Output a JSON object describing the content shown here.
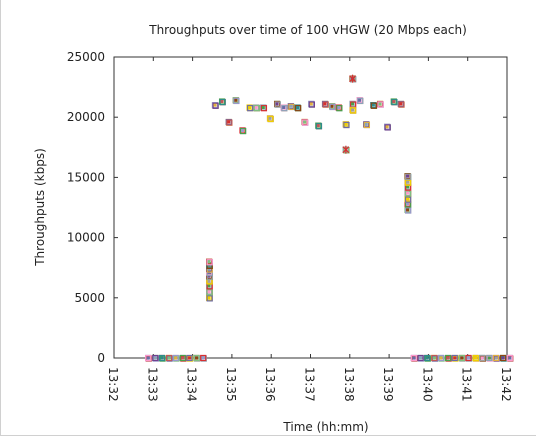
{
  "chart_data": {
    "type": "scatter",
    "title": "Throughputs over time of 100 vHGW (20 Mbps each)",
    "xlabel": "Time (hh:mm)",
    "ylabel": "Throughputs (kbps)",
    "xlim": [
      "13:32",
      "13:42"
    ],
    "ylim": [
      0,
      25000
    ],
    "x_ticks": [
      "13:32",
      "13:33",
      "13:34",
      "13:35",
      "13:36",
      "13:37",
      "13:38",
      "13:39",
      "13:40",
      "13:41",
      "13:42"
    ],
    "y_ticks": [
      0,
      5000,
      10000,
      15000,
      20000,
      25000
    ],
    "grid": false,
    "marker_colors": [
      "#6a6aa8",
      "#8aa4b8",
      "#2c8c8c",
      "#7fbf7f",
      "#e0b040",
      "#c05858",
      "#d63030",
      "#8b4513",
      "#9999cc",
      "#f0d000",
      "#ff99cc",
      "#4aa04a",
      "#a0a0a0",
      "#6f3f8f"
    ],
    "note_points": "x in minutes after 13:32, y in kbps; representative aggregate of overlapping markers for 100 vHGW series",
    "points": [
      {
        "x": 0.87,
        "y": 0
      },
      {
        "x": 1.05,
        "y": 0
      },
      {
        "x": 1.22,
        "y": 0
      },
      {
        "x": 1.4,
        "y": 0
      },
      {
        "x": 1.57,
        "y": 0
      },
      {
        "x": 1.75,
        "y": 0
      },
      {
        "x": 1.92,
        "y": 0
      },
      {
        "x": 2.1,
        "y": 0
      },
      {
        "x": 2.27,
        "y": 0
      },
      {
        "x": 2.42,
        "y": 5000
      },
      {
        "x": 2.42,
        "y": 5500
      },
      {
        "x": 2.42,
        "y": 6000
      },
      {
        "x": 2.42,
        "y": 6400
      },
      {
        "x": 2.42,
        "y": 6800
      },
      {
        "x": 2.42,
        "y": 7100
      },
      {
        "x": 2.42,
        "y": 7400
      },
      {
        "x": 2.42,
        "y": 7700
      },
      {
        "x": 2.42,
        "y": 8000
      },
      {
        "x": 2.57,
        "y": 21000
      },
      {
        "x": 2.75,
        "y": 21300
      },
      {
        "x": 2.92,
        "y": 19600
      },
      {
        "x": 3.1,
        "y": 21400
      },
      {
        "x": 3.27,
        "y": 18900
      },
      {
        "x": 3.45,
        "y": 20800
      },
      {
        "x": 3.62,
        "y": 20800
      },
      {
        "x": 3.8,
        "y": 20800
      },
      {
        "x": 3.97,
        "y": 19900
      },
      {
        "x": 4.15,
        "y": 21100
      },
      {
        "x": 4.32,
        "y": 20800
      },
      {
        "x": 4.5,
        "y": 20900
      },
      {
        "x": 4.67,
        "y": 20800
      },
      {
        "x": 4.85,
        "y": 19600
      },
      {
        "x": 5.02,
        "y": 21100
      },
      {
        "x": 5.2,
        "y": 19300
      },
      {
        "x": 5.37,
        "y": 21100
      },
      {
        "x": 5.55,
        "y": 20900
      },
      {
        "x": 5.72,
        "y": 20800
      },
      {
        "x": 5.9,
        "y": 19400
      },
      {
        "x": 5.9,
        "y": 17300
      },
      {
        "x": 6.07,
        "y": 21100
      },
      {
        "x": 6.07,
        "y": 20600
      },
      {
        "x": 6.07,
        "y": 23200
      },
      {
        "x": 6.25,
        "y": 21400
      },
      {
        "x": 6.42,
        "y": 19400
      },
      {
        "x": 6.6,
        "y": 21000
      },
      {
        "x": 6.77,
        "y": 21100
      },
      {
        "x": 6.95,
        "y": 19200
      },
      {
        "x": 7.12,
        "y": 21300
      },
      {
        "x": 7.3,
        "y": 21100
      },
      {
        "x": 7.47,
        "y": 12300
      },
      {
        "x": 7.47,
        "y": 12800
      },
      {
        "x": 7.47,
        "y": 13200
      },
      {
        "x": 7.47,
        "y": 13700
      },
      {
        "x": 7.47,
        "y": 14200
      },
      {
        "x": 7.47,
        "y": 14600
      },
      {
        "x": 7.47,
        "y": 15100
      },
      {
        "x": 7.63,
        "y": 0
      },
      {
        "x": 7.8,
        "y": 0
      },
      {
        "x": 7.97,
        "y": 0
      },
      {
        "x": 8.15,
        "y": 0
      },
      {
        "x": 8.32,
        "y": 0
      },
      {
        "x": 8.5,
        "y": 0
      },
      {
        "x": 8.67,
        "y": 0
      },
      {
        "x": 8.85,
        "y": 0
      },
      {
        "x": 9.02,
        "y": 0
      },
      {
        "x": 9.2,
        "y": 0
      },
      {
        "x": 9.37,
        "y": 0
      },
      {
        "x": 9.55,
        "y": 0
      },
      {
        "x": 9.72,
        "y": 0
      },
      {
        "x": 9.9,
        "y": 0
      },
      {
        "x": 10.07,
        "y": 0
      }
    ]
  }
}
